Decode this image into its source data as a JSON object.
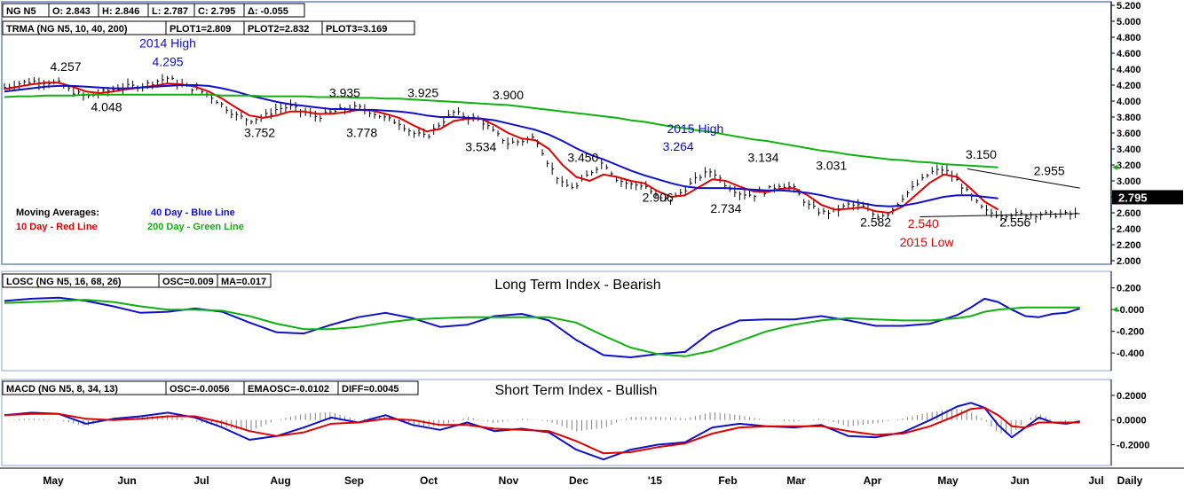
{
  "colors": {
    "red": "#e00000",
    "blue": "#1010c8",
    "green": "#10b010",
    "black": "#000000",
    "bar": "#000000",
    "frame": "#8ea3d6",
    "hist": "#808080"
  },
  "headers": {
    "price": [
      "NG N5",
      "O: 2.843",
      "H: 2.846",
      "L: 2.787",
      "C: 2.795",
      "Δ: -0.055"
    ],
    "trma": [
      "TRMA (NG N5, 10, 40, 200)",
      "PLOT1=2.809",
      "PLOT2=2.832",
      "PLOT3=3.169"
    ],
    "losc": [
      "LOSC (NG N5, 16, 68, 26)",
      "OSC=0.009",
      "MA=0.017"
    ],
    "macd": [
      "MACD (NG N5, 8, 34, 13)",
      "OSC=-0.0056",
      "EMAOSC=-0.0102",
      "DIFF=0.0045"
    ]
  },
  "panel_titles": {
    "losc": "Long Term Index - Bearish",
    "macd": "Short Term Index - Bullish"
  },
  "legend": {
    "title": "Moving Averages:",
    "red": "10 Day - Red Line",
    "blue": "40 Day - Blue Line",
    "green": "200 Day - Green Line"
  },
  "last_price_label": "2.795",
  "x_labels": [
    "May",
    "Jun",
    "Jul",
    "Aug",
    "Sep",
    "Oct",
    "Nov",
    "Dec",
    "'15",
    "Feb",
    "Mar",
    "Apr",
    "May",
    "Jun",
    "Jul"
  ],
  "period_label": "Daily",
  "chart_data": [
    {
      "type": "line",
      "panel": "price",
      "y_ticks": [
        "2.000",
        "2.200",
        "2.400",
        "2.600",
        "2.800",
        "3.000",
        "3.200",
        "3.400",
        "3.600",
        "3.800",
        "4.000",
        "4.200",
        "4.400",
        "4.600",
        "4.800",
        "5.000",
        "5.200"
      ],
      "ylim": [
        2.0,
        5.2
      ],
      "x": [
        0,
        4,
        8,
        12,
        16,
        20,
        24,
        28,
        32,
        36,
        40,
        44,
        48,
        52,
        56,
        60,
        64,
        68,
        72,
        76,
        80,
        84,
        88,
        92,
        96,
        100,
        104,
        108,
        112,
        116,
        120,
        124,
        128,
        132,
        136,
        140,
        144,
        148,
        152,
        156,
        160,
        164,
        168,
        172,
        176,
        180,
        184,
        188,
        192,
        196,
        200,
        204,
        208,
        212,
        216,
        220,
        224,
        228,
        232,
        236,
        240,
        244,
        248,
        252,
        256,
        260,
        264,
        268,
        272,
        276,
        280,
        284,
        288,
        292
      ],
      "close": [
        4.17,
        4.22,
        4.25,
        4.24,
        4.22,
        4.12,
        4.05,
        4.1,
        4.15,
        4.18,
        4.19,
        4.24,
        4.29,
        4.2,
        4.15,
        4.08,
        3.95,
        3.82,
        3.76,
        3.8,
        3.9,
        3.93,
        3.86,
        3.8,
        3.86,
        3.9,
        3.92,
        3.86,
        3.78,
        3.73,
        3.6,
        3.55,
        3.72,
        3.86,
        3.8,
        3.76,
        3.6,
        3.47,
        3.5,
        3.55,
        3.2,
        2.95,
        2.92,
        3.1,
        3.24,
        3.02,
        2.95,
        2.95,
        2.78,
        2.76,
        2.9,
        3.05,
        3.13,
        2.95,
        2.85,
        2.82,
        2.88,
        2.96,
        2.9,
        2.7,
        2.6,
        2.62,
        2.7,
        2.68,
        2.56,
        2.6,
        2.8,
        2.95,
        3.1,
        3.15,
        3.0,
        2.8,
        2.62,
        2.58
      ],
      "series": [
        {
          "name": "10 Day - Red Line",
          "values": [
            4.15,
            4.18,
            4.21,
            4.23,
            4.23,
            4.18,
            4.12,
            4.1,
            4.12,
            4.15,
            4.17,
            4.19,
            4.22,
            4.21,
            4.18,
            4.12,
            4.03,
            3.92,
            3.82,
            3.79,
            3.82,
            3.87,
            3.87,
            3.84,
            3.84,
            3.86,
            3.89,
            3.88,
            3.84,
            3.79,
            3.7,
            3.62,
            3.65,
            3.75,
            3.78,
            3.78,
            3.7,
            3.6,
            3.53,
            3.51,
            3.4,
            3.2,
            3.05,
            3.0,
            3.08,
            3.05,
            3.0,
            2.97,
            2.87,
            2.8,
            2.82,
            2.92,
            3.02,
            3.0,
            2.93,
            2.87,
            2.86,
            2.9,
            2.91,
            2.82,
            2.7,
            2.64,
            2.65,
            2.67,
            2.62,
            2.6,
            2.68,
            2.83,
            2.98,
            3.08,
            3.05,
            2.9,
            2.74,
            2.64
          ]
        },
        {
          "name": "40 Day - Blue Line",
          "values": [
            4.12,
            4.14,
            4.16,
            4.18,
            4.19,
            4.19,
            4.18,
            4.17,
            4.16,
            4.16,
            4.17,
            4.18,
            4.19,
            4.2,
            4.2,
            4.19,
            4.16,
            4.12,
            4.07,
            4.03,
            3.99,
            3.96,
            3.94,
            3.92,
            3.9,
            3.9,
            3.89,
            3.89,
            3.88,
            3.87,
            3.85,
            3.82,
            3.8,
            3.8,
            3.79,
            3.78,
            3.76,
            3.72,
            3.68,
            3.64,
            3.58,
            3.5,
            3.41,
            3.33,
            3.27,
            3.2,
            3.13,
            3.07,
            3.02,
            2.97,
            2.93,
            2.91,
            2.91,
            2.91,
            2.9,
            2.89,
            2.88,
            2.88,
            2.87,
            2.85,
            2.82,
            2.78,
            2.75,
            2.72,
            2.69,
            2.68,
            2.69,
            2.72,
            2.76,
            2.8,
            2.82,
            2.82,
            2.8,
            2.78
          ]
        },
        {
          "name": "200 Day - Green Line",
          "values": [
            4.05,
            4.06,
            4.06,
            4.07,
            4.07,
            4.07,
            4.08,
            4.08,
            4.08,
            4.08,
            4.08,
            4.08,
            4.08,
            4.08,
            4.08,
            4.08,
            4.07,
            4.07,
            4.07,
            4.06,
            4.06,
            4.06,
            4.06,
            4.05,
            4.05,
            4.05,
            4.04,
            4.04,
            4.03,
            4.03,
            4.02,
            4.01,
            4.0,
            3.99,
            3.98,
            3.97,
            3.96,
            3.95,
            3.93,
            3.91,
            3.89,
            3.87,
            3.85,
            3.83,
            3.81,
            3.79,
            3.76,
            3.74,
            3.71,
            3.68,
            3.66,
            3.63,
            3.61,
            3.58,
            3.55,
            3.52,
            3.5,
            3.47,
            3.44,
            3.41,
            3.38,
            3.36,
            3.33,
            3.31,
            3.29,
            3.27,
            3.26,
            3.24,
            3.23,
            3.21,
            3.2,
            3.19,
            3.18,
            3.17
          ]
        }
      ],
      "annotations": [
        {
          "text": "4.257",
          "x": 18,
          "y": 4.38,
          "color": "black"
        },
        {
          "text": "2014 High",
          "x": 48,
          "y": 4.67,
          "color": "blue"
        },
        {
          "text": "4.295",
          "x": 48,
          "y": 4.44,
          "color": "blue"
        },
        {
          "text": "4.048",
          "x": 30,
          "y": 3.87,
          "color": "black"
        },
        {
          "text": "3.752",
          "x": 75,
          "y": 3.55,
          "color": "black"
        },
        {
          "text": "3.935",
          "x": 100,
          "y": 4.05,
          "color": "black"
        },
        {
          "text": "3.778",
          "x": 105,
          "y": 3.55,
          "color": "black"
        },
        {
          "text": "3.925",
          "x": 123,
          "y": 4.05,
          "color": "black"
        },
        {
          "text": "3.900",
          "x": 148,
          "y": 4.02,
          "color": "black"
        },
        {
          "text": "3.534",
          "x": 140,
          "y": 3.37,
          "color": "black"
        },
        {
          "text": "3.450",
          "x": 170,
          "y": 3.24,
          "color": "black"
        },
        {
          "text": "2015 High",
          "x": 203,
          "y": 3.6,
          "color": "blue"
        },
        {
          "text": "3.264",
          "x": 198,
          "y": 3.38,
          "color": "blue"
        },
        {
          "text": "2.906",
          "x": 192,
          "y": 2.74,
          "color": "black"
        },
        {
          "text": "3.134",
          "x": 223,
          "y": 3.24,
          "color": "black"
        },
        {
          "text": "2.734",
          "x": 212,
          "y": 2.6,
          "color": "black"
        },
        {
          "text": "3.031",
          "x": 243,
          "y": 3.14,
          "color": "black"
        },
        {
          "text": "2.582",
          "x": 256,
          "y": 2.43,
          "color": "black"
        },
        {
          "text": "2.540",
          "x": 270,
          "y": 2.41,
          "color": "red"
        },
        {
          "text": "2015 Low",
          "x": 271,
          "y": 2.18,
          "color": "red"
        },
        {
          "text": "3.150",
          "x": 287,
          "y": 3.28,
          "color": "black"
        },
        {
          "text": "2.955",
          "x": 307,
          "y": 3.07,
          "color": "black"
        },
        {
          "text": "2.556",
          "x": 297,
          "y": 2.43,
          "color": "black"
        }
      ],
      "trend_lines": [
        {
          "x1": 283,
          "y1": 3.15,
          "x2": 316,
          "y2": 2.91
        },
        {
          "x1": 269,
          "y1": 2.55,
          "x2": 316,
          "y2": 2.59
        }
      ]
    },
    {
      "type": "line",
      "panel": "losc",
      "title": "Long Term Index - Bearish",
      "y_ticks": [
        "-0.400",
        "-0.200",
        "-0.000",
        "0.200"
      ],
      "ylim": [
        -0.53,
        0.32
      ],
      "x": [
        0,
        8,
        16,
        24,
        32,
        40,
        48,
        56,
        64,
        72,
        80,
        88,
        96,
        104,
        112,
        120,
        128,
        136,
        144,
        152,
        160,
        168,
        176,
        184,
        192,
        200,
        208,
        216,
        224,
        232,
        240,
        248,
        256,
        264,
        272,
        280,
        284,
        288,
        292,
        296,
        300,
        304,
        308,
        312,
        316
      ],
      "series": [
        {
          "name": "Blue",
          "values": [
            0.08,
            0.1,
            0.11,
            0.08,
            0.03,
            -0.03,
            -0.02,
            0.01,
            -0.02,
            -0.12,
            -0.21,
            -0.22,
            -0.14,
            -0.07,
            -0.03,
            -0.08,
            -0.16,
            -0.14,
            -0.06,
            -0.04,
            -0.1,
            -0.28,
            -0.42,
            -0.44,
            -0.41,
            -0.39,
            -0.2,
            -0.1,
            -0.09,
            -0.09,
            -0.06,
            -0.1,
            -0.15,
            -0.15,
            -0.13,
            -0.05,
            0.02,
            0.1,
            0.07,
            0.0,
            -0.06,
            -0.07,
            -0.04,
            -0.03,
            0.01
          ]
        },
        {
          "name": "Green",
          "values": [
            0.06,
            0.07,
            0.08,
            0.09,
            0.07,
            0.03,
            0.0,
            0.0,
            -0.01,
            -0.06,
            -0.13,
            -0.18,
            -0.18,
            -0.16,
            -0.12,
            -0.09,
            -0.08,
            -0.07,
            -0.07,
            -0.07,
            -0.07,
            -0.12,
            -0.24,
            -0.35,
            -0.41,
            -0.43,
            -0.38,
            -0.29,
            -0.2,
            -0.14,
            -0.1,
            -0.08,
            -0.09,
            -0.1,
            -0.1,
            -0.08,
            -0.06,
            -0.02,
            0.0,
            0.01,
            0.02,
            0.02,
            0.02,
            0.02,
            0.02
          ]
        }
      ]
    },
    {
      "type": "line",
      "panel": "macd",
      "title": "Short Term Index - Bullish",
      "y_ticks": [
        "-0.2000",
        "0.0000",
        "0.2000"
      ],
      "ylim": [
        -0.34,
        0.3
      ],
      "x": [
        0,
        8,
        16,
        24,
        32,
        40,
        48,
        56,
        64,
        72,
        80,
        88,
        96,
        104,
        112,
        120,
        128,
        136,
        144,
        152,
        160,
        168,
        176,
        184,
        192,
        200,
        208,
        216,
        224,
        232,
        240,
        248,
        256,
        264,
        272,
        280,
        284,
        288,
        292,
        296,
        300,
        304,
        308,
        312,
        316
      ],
      "series": [
        {
          "name": "Blue",
          "values": [
            0.04,
            0.06,
            0.05,
            -0.03,
            0.01,
            0.03,
            0.06,
            0.02,
            -0.06,
            -0.16,
            -0.13,
            -0.06,
            0.02,
            -0.02,
            0.04,
            -0.04,
            -0.08,
            -0.02,
            -0.09,
            -0.07,
            -0.1,
            -0.24,
            -0.32,
            -0.24,
            -0.2,
            -0.18,
            -0.06,
            -0.03,
            -0.05,
            -0.06,
            -0.04,
            -0.13,
            -0.14,
            -0.1,
            0.0,
            0.11,
            0.14,
            0.1,
            -0.04,
            -0.14,
            -0.06,
            0.02,
            -0.02,
            -0.03,
            -0.01
          ]
        },
        {
          "name": "Red",
          "values": [
            0.04,
            0.05,
            0.05,
            0.01,
            0.0,
            0.01,
            0.03,
            0.03,
            -0.02,
            -0.09,
            -0.13,
            -0.1,
            -0.03,
            -0.02,
            0.01,
            0.0,
            -0.04,
            -0.04,
            -0.07,
            -0.08,
            -0.09,
            -0.17,
            -0.27,
            -0.26,
            -0.22,
            -0.19,
            -0.11,
            -0.06,
            -0.05,
            -0.05,
            -0.05,
            -0.09,
            -0.12,
            -0.11,
            -0.05,
            0.04,
            0.09,
            0.1,
            0.04,
            -0.05,
            -0.06,
            -0.02,
            -0.02,
            -0.02,
            -0.02
          ]
        }
      ]
    }
  ]
}
